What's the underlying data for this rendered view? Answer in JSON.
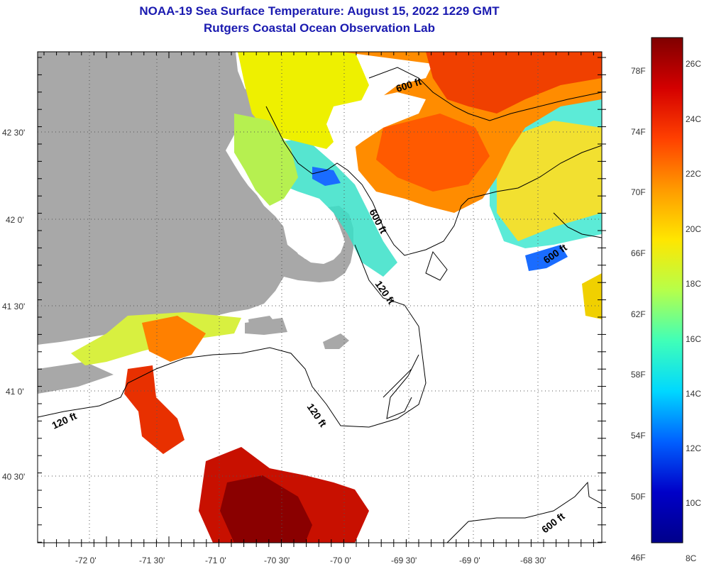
{
  "title": "NOAA-19 Sea Surface Temperature:  August 15, 2022 1229 GMT",
  "subtitle": "Rutgers Coastal Ocean Observation Lab",
  "lat_labels": [
    "42 30'",
    "42 0'",
    "41 30'",
    "41 0'",
    "40 30'"
  ],
  "lon_labels": [
    "-72 0'",
    "-71 30'",
    "-71 0'",
    "-70 30'",
    "-70 0'",
    "-69 30'",
    "-69 0'",
    "-68 30'"
  ],
  "contour_labels": [
    "600 ft",
    "600 ft",
    "600 ft",
    "120 ft",
    "120 ft",
    "120 ft",
    "600 ft"
  ],
  "colorbar": {
    "fahrenheit": [
      "78F",
      "74F",
      "70F",
      "66F",
      "62F",
      "58F",
      "54F",
      "50F",
      "46F"
    ],
    "celsius": [
      "26C",
      "24C",
      "22C",
      "20C",
      "18C",
      "16C",
      "14C",
      "12C",
      "10C",
      "8C"
    ]
  },
  "colors": {
    "land": "#a8a8a8",
    "title": "#1a1ab0",
    "scale": [
      "#7f0000",
      "#d40000",
      "#ff4000",
      "#ff9a00",
      "#ffe600",
      "#b6ff4a",
      "#40ffb8",
      "#00d8ff",
      "#0060ff",
      "#0000c8",
      "#00008a"
    ]
  }
}
